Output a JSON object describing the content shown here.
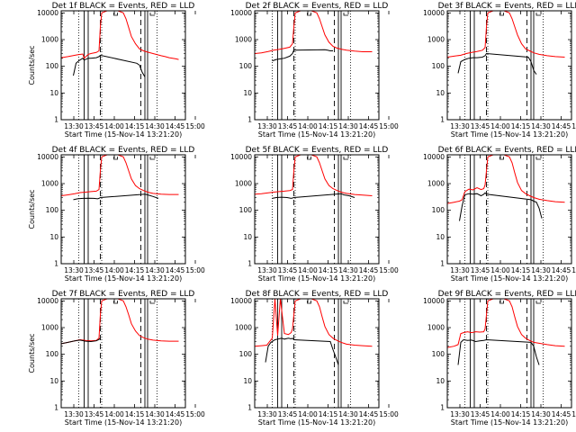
{
  "chart_data": [
    {
      "type": "line",
      "title": "Det 1f BLACK = Events, RED = LLD",
      "xlabel": "Start Time (15-Nov-14 13:21:20)",
      "ylabel": "Counts/sec",
      "xticks": [
        "13:30",
        "13:45",
        "14:00",
        "14:15",
        "14:30",
        "14:45",
        "15:00"
      ],
      "yticks": [
        "1",
        "10",
        "100",
        "1000",
        "10000"
      ],
      "xlim_minutes": [
        8,
        100
      ],
      "ylim": [
        1,
        12000
      ],
      "ylog": true,
      "series": [
        {
          "name": "RED = LLD",
          "color": "#ff0000",
          "x": [
            8,
            13,
            20,
            24,
            25,
            28,
            30,
            34,
            36,
            37,
            38,
            40,
            42,
            45,
            48,
            50,
            54,
            56,
            58,
            60,
            63,
            66,
            69,
            72,
            76,
            82,
            85,
            88,
            93,
            95
          ],
          "y": [
            210,
            230,
            270,
            290,
            200,
            280,
            300,
            330,
            380,
            3000,
            10000,
            11000,
            12000,
            12000,
            12000,
            12000,
            10000,
            6000,
            2800,
            1300,
            700,
            450,
            380,
            340,
            300,
            250,
            230,
            210,
            190,
            180
          ]
        },
        {
          "name": "BLACK = Events",
          "color": "#000000",
          "x": [
            17,
            19,
            21,
            24,
            25,
            28,
            30,
            34,
            36,
            37,
            64,
            66,
            68,
            70
          ],
          "y": [
            45,
            130,
            160,
            200,
            170,
            200,
            200,
            210,
            230,
            260,
            130,
            110,
            60,
            40
          ]
        }
      ]
    },
    {
      "type": "line",
      "title": "Det 2f BLACK = Events, RED = LLD",
      "xlabel": "Start Time (15-Nov-14 13:21:20)",
      "ylabel": "",
      "xticks": [
        "13:30",
        "13:45",
        "14:00",
        "14:15",
        "14:30",
        "14:45",
        "15:00"
      ],
      "yticks": [
        "1",
        "10",
        "100",
        "1000",
        "10000"
      ],
      "xlim_minutes": [
        8,
        100
      ],
      "ylim": [
        1,
        12000
      ],
      "ylog": true,
      "series": [
        {
          "name": "RED = LLD",
          "color": "#ff0000",
          "x": [
            8,
            13,
            18,
            22,
            26,
            30,
            34,
            36,
            37,
            38,
            40,
            42,
            45,
            48,
            50,
            54,
            56,
            58,
            60,
            63,
            66,
            69,
            72,
            76,
            82,
            88,
            95
          ],
          "y": [
            300,
            320,
            360,
            400,
            430,
            470,
            520,
            700,
            3000,
            10000,
            11000,
            12000,
            12000,
            12000,
            12000,
            10000,
            6000,
            3000,
            1500,
            800,
            560,
            480,
            440,
            400,
            370,
            350,
            350
          ]
        },
        {
          "name": "BLACK = Events",
          "color": "#000000",
          "x": [
            21,
            24,
            27,
            30,
            34,
            36,
            37,
            60,
            62,
            64,
            66
          ],
          "y": [
            160,
            180,
            190,
            200,
            240,
            300,
            400,
            420,
            400,
            380,
            380
          ]
        }
      ]
    },
    {
      "type": "line",
      "title": "Det 3f BLACK = Events, RED = LLD",
      "xlabel": "Start Time (15-Nov-14 13:21:20)",
      "ylabel": "",
      "xticks": [
        "13:30",
        "13:45",
        "14:00",
        "14:15",
        "14:30",
        "14:45",
        "15:00"
      ],
      "yticks": [
        "1",
        "10",
        "100",
        "1000",
        "10000"
      ],
      "xlim_minutes": [
        8,
        100
      ],
      "ylim": [
        1,
        12000
      ],
      "ylog": true,
      "series": [
        {
          "name": "RED = LLD",
          "color": "#ff0000",
          "x": [
            8,
            13,
            18,
            22,
            26,
            30,
            34,
            36,
            37,
            38,
            40,
            42,
            45,
            48,
            50,
            54,
            56,
            58,
            60,
            63,
            66,
            69,
            72,
            76,
            82,
            88,
            95
          ],
          "y": [
            220,
            240,
            260,
            300,
            330,
            360,
            400,
            500,
            3000,
            10000,
            11000,
            12000,
            12000,
            12000,
            12000,
            10000,
            6000,
            3000,
            1500,
            700,
            450,
            380,
            320,
            280,
            250,
            230,
            220
          ]
        },
        {
          "name": "BLACK = Events",
          "color": "#000000",
          "x": [
            16,
            18,
            21,
            24,
            27,
            30,
            34,
            36,
            37,
            68,
            70,
            72,
            74
          ],
          "y": [
            55,
            150,
            180,
            200,
            210,
            210,
            220,
            250,
            300,
            220,
            150,
            70,
            50
          ]
        }
      ]
    },
    {
      "type": "line",
      "title": "Det 4f BLACK = Events, RED = LLD",
      "xlabel": "Start Time (15-Nov-14 13:21:20)",
      "ylabel": "Counts/sec",
      "xticks": [
        "13:30",
        "13:45",
        "14:00",
        "14:15",
        "14:30",
        "14:45",
        "15:00"
      ],
      "yticks": [
        "1",
        "10",
        "100",
        "1000",
        "10000"
      ],
      "xlim_minutes": [
        8,
        100
      ],
      "ylim": [
        1,
        12000
      ],
      "ylog": true,
      "series": [
        {
          "name": "RED = LLD",
          "color": "#ff0000",
          "x": [
            8,
            13,
            18,
            22,
            26,
            30,
            34,
            36,
            37,
            38,
            40,
            42,
            45,
            48,
            50,
            54,
            56,
            58,
            60,
            63,
            66,
            69,
            72,
            76,
            82,
            88,
            95
          ],
          "y": [
            350,
            380,
            420,
            460,
            480,
            500,
            520,
            600,
            3000,
            10000,
            11000,
            12000,
            12000,
            12000,
            12000,
            10000,
            6000,
            3000,
            1500,
            850,
            650,
            550,
            480,
            430,
            400,
            390,
            390
          ]
        },
        {
          "name": "BLACK = Events",
          "color": "#000000",
          "x": [
            17,
            20,
            24,
            28,
            32,
            35,
            36,
            37,
            70,
            72,
            76,
            80
          ],
          "y": [
            250,
            270,
            280,
            285,
            280,
            270,
            280,
            300,
            400,
            380,
            330,
            280
          ]
        }
      ]
    },
    {
      "type": "line",
      "title": "Det 5f BLACK = Events, RED = LLD",
      "xlabel": "Start Time (15-Nov-14 13:21:20)",
      "ylabel": "",
      "xticks": [
        "13:30",
        "13:45",
        "14:00",
        "14:15",
        "14:30",
        "14:45",
        "15:00"
      ],
      "yticks": [
        "1",
        "10",
        "100",
        "1000",
        "10000"
      ],
      "xlim_minutes": [
        8,
        100
      ],
      "ylim": [
        1,
        12000
      ],
      "ylog": true,
      "series": [
        {
          "name": "RED = LLD",
          "color": "#ff0000",
          "x": [
            8,
            13,
            18,
            22,
            26,
            30,
            34,
            36,
            37,
            38,
            40,
            42,
            45,
            48,
            50,
            54,
            56,
            58,
            60,
            63,
            66,
            69,
            72,
            76,
            82,
            88,
            95
          ],
          "y": [
            400,
            420,
            450,
            480,
            500,
            520,
            550,
            600,
            3000,
            10000,
            11000,
            12000,
            12000,
            12000,
            12000,
            10000,
            6000,
            3000,
            1500,
            850,
            650,
            550,
            480,
            430,
            390,
            370,
            350
          ]
        },
        {
          "name": "BLACK = Events",
          "color": "#000000",
          "x": [
            21,
            24,
            28,
            32,
            35,
            36,
            37,
            72,
            74,
            78,
            82
          ],
          "y": [
            280,
            300,
            310,
            300,
            280,
            290,
            300,
            420,
            380,
            350,
            300
          ]
        }
      ]
    },
    {
      "type": "line",
      "title": "Det 6f BLACK = Events, RED = LLD",
      "xlabel": "Start Time (15-Nov-14 13:21:20)",
      "ylabel": "",
      "xticks": [
        "13:30",
        "13:45",
        "14:00",
        "14:15",
        "14:30",
        "14:45",
        "15:00"
      ],
      "yticks": [
        "1",
        "10",
        "100",
        "1000",
        "10000"
      ],
      "xlim_minutes": [
        8,
        100
      ],
      "ylim": [
        1,
        12000
      ],
      "ylog": true,
      "series": [
        {
          "name": "RED = LLD",
          "color": "#ff0000",
          "x": [
            8,
            13,
            17,
            19,
            21,
            24,
            27,
            30,
            33,
            35,
            36,
            37,
            38,
            40,
            42,
            45,
            48,
            50,
            54,
            56,
            58,
            60,
            63,
            66,
            69,
            72,
            76,
            82,
            88,
            95
          ],
          "y": [
            180,
            200,
            220,
            250,
            500,
            620,
            580,
            700,
            600,
            650,
            900,
            3000,
            10000,
            11000,
            12000,
            12000,
            12000,
            12000,
            10000,
            6000,
            2500,
            1100,
            550,
            420,
            350,
            300,
            260,
            230,
            210,
            200
          ]
        },
        {
          "name": "BLACK = Events",
          "color": "#000000",
          "x": [
            17,
            19,
            21,
            24,
            27,
            30,
            33,
            35,
            36,
            37,
            70,
            72,
            74,
            76,
            78
          ],
          "y": [
            40,
            150,
            380,
            420,
            400,
            420,
            350,
            400,
            450,
            400,
            250,
            220,
            200,
            120,
            50
          ]
        }
      ]
    },
    {
      "type": "line",
      "title": "Det 7f BLACK = Events, RED = LLD",
      "xlabel": "Start Time (15-Nov-14 13:21:20)",
      "ylabel": "Counts/sec",
      "xticks": [
        "13:30",
        "13:45",
        "14:00",
        "14:15",
        "14:30",
        "14:45",
        "15:00"
      ],
      "yticks": [
        "1",
        "10",
        "100",
        "1000",
        "10000"
      ],
      "xlim_minutes": [
        8,
        100
      ],
      "ylim": [
        1,
        12000
      ],
      "ylog": true,
      "series": [
        {
          "name": "RED = LLD",
          "color": "#ff0000",
          "x": [
            8,
            13,
            18,
            22,
            26,
            30,
            34,
            36,
            37,
            38,
            40,
            42,
            45,
            48,
            50,
            54,
            56,
            58,
            60,
            63,
            66,
            69,
            72,
            76,
            82,
            88,
            95
          ],
          "y": [
            250,
            280,
            320,
            350,
            330,
            320,
            330,
            400,
            3000,
            10000,
            11000,
            12000,
            12000,
            12000,
            12000,
            10000,
            6000,
            3000,
            1400,
            750,
            500,
            420,
            370,
            340,
            320,
            310,
            310
          ]
        },
        {
          "name": "BLACK = Events",
          "color": "#000000",
          "x": [
            8,
            13,
            18,
            22,
            26,
            30,
            34,
            36,
            37
          ],
          "y": [
            250,
            280,
            320,
            340,
            310,
            300,
            320,
            360,
            400
          ]
        }
      ]
    },
    {
      "type": "line",
      "title": "Det 8f BLACK = Events, RED = LLD",
      "xlabel": "Start Time (15-Nov-14 13:21:20)",
      "ylabel": "",
      "xticks": [
        "13:30",
        "13:45",
        "14:00",
        "14:15",
        "14:30",
        "14:45",
        "15:00"
      ],
      "yticks": [
        "1",
        "10",
        "100",
        "1000",
        "10000"
      ],
      "xlim_minutes": [
        8,
        100
      ],
      "ylim": [
        1,
        12000
      ],
      "ylog": true,
      "series": [
        {
          "name": "RED = LLD",
          "color": "#ff0000",
          "x": [
            8,
            13,
            17,
            19,
            21,
            23,
            25,
            27,
            30,
            33,
            35,
            36,
            37,
            38,
            40,
            42,
            45,
            48,
            50,
            54,
            56,
            58,
            60,
            63,
            66,
            69,
            72,
            76,
            82,
            88,
            95
          ],
          "y": [
            200,
            210,
            220,
            300,
            400,
            12000,
            500,
            12000,
            600,
            550,
            650,
            900,
            3000,
            10000,
            11000,
            12000,
            12000,
            12000,
            12000,
            10000,
            6000,
            2500,
            1100,
            550,
            400,
            330,
            280,
            240,
            220,
            210,
            200
          ]
        },
        {
          "name": "BLACK = Events",
          "color": "#000000",
          "x": [
            16,
            18,
            20,
            23,
            26,
            28,
            30,
            33,
            35,
            36,
            37,
            64,
            66,
            68,
            70
          ],
          "y": [
            50,
            200,
            280,
            350,
            380,
            400,
            370,
            400,
            380,
            400,
            350,
            300,
            150,
            80,
            40
          ]
        }
      ]
    },
    {
      "type": "line",
      "title": "Det 9f BLACK = Events, RED = LLD",
      "xlabel": "Start Time (15-Nov-14 13:21:20)",
      "ylabel": "",
      "xticks": [
        "13:30",
        "13:45",
        "14:00",
        "14:15",
        "14:30",
        "14:45",
        "15:00"
      ],
      "yticks": [
        "1",
        "10",
        "100",
        "1000",
        "10000"
      ],
      "xlim_minutes": [
        8,
        100
      ],
      "ylim": [
        1,
        12000
      ],
      "ylog": true,
      "series": [
        {
          "name": "RED = LLD",
          "color": "#ff0000",
          "x": [
            8,
            13,
            16,
            18,
            20,
            23,
            26,
            29,
            32,
            35,
            36,
            37,
            38,
            40,
            42,
            45,
            48,
            50,
            54,
            56,
            58,
            60,
            63,
            66,
            69,
            72,
            76,
            82,
            88,
            95
          ],
          "y": [
            180,
            200,
            230,
            600,
            650,
            700,
            650,
            700,
            680,
            700,
            900,
            3000,
            10000,
            11000,
            12000,
            12000,
            12000,
            12000,
            10000,
            6000,
            2500,
            1100,
            550,
            400,
            330,
            280,
            260,
            230,
            210,
            200
          ]
        },
        {
          "name": "BLACK = Events",
          "color": "#000000",
          "x": [
            16,
            18,
            20,
            23,
            26,
            29,
            32,
            35,
            36,
            37,
            70,
            72,
            74,
            76
          ],
          "y": [
            40,
            280,
            350,
            330,
            340,
            300,
            320,
            330,
            340,
            350,
            280,
            200,
            80,
            40
          ]
        }
      ]
    }
  ]
}
